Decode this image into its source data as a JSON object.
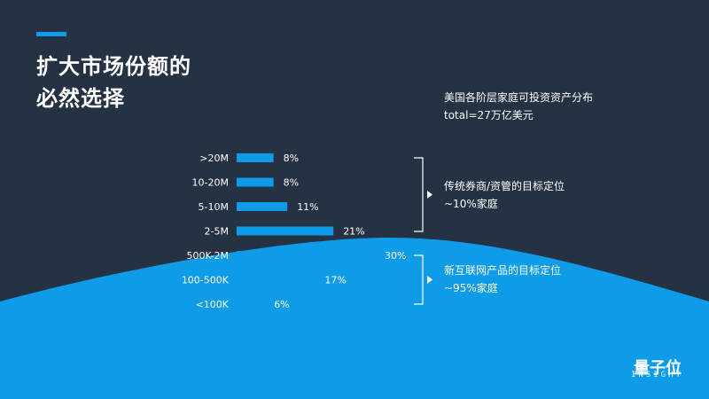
{
  "title_line1": "扩大市场份额的",
  "title_line2": "必然选择",
  "subtitle_line1": "美国各阶层家庭可投资资产分布",
  "subtitle_line2": "total=27万亿美元",
  "group_top": {
    "label": "传统券商/资管的目标定位",
    "share": "~10%家庭"
  },
  "group_bottom": {
    "label": "新互联网产品的目标定位",
    "share": "~95%家庭"
  },
  "watermark": {
    "name": "量子位",
    "sub": "INSIGHT"
  },
  "colors": {
    "background": "#243243",
    "bar": "#0e9ce8",
    "wave": "#0e9ce8"
  },
  "chart_data": {
    "type": "bar",
    "orientation": "horizontal",
    "categories": [
      ">20M",
      "10-20M",
      "5-10M",
      "2-5M",
      "500K-2M",
      "100-500K",
      "<100K"
    ],
    "values": [
      8,
      8,
      11,
      21,
      30,
      17,
      6
    ],
    "value_labels": [
      "8%",
      "8%",
      "11%",
      "21%",
      "30%",
      "17%",
      "6%"
    ],
    "unit": "%",
    "title": "美国各阶层家庭可投资资产分布",
    "xlabel": "",
    "ylabel": "",
    "xlim": [
      0,
      30
    ],
    "grid": false,
    "legend": "none"
  }
}
